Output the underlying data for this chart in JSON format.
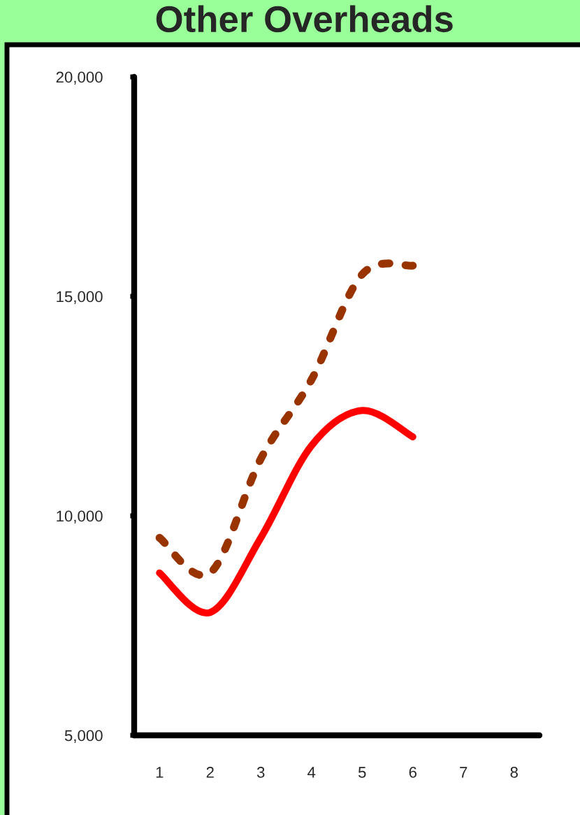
{
  "chart_data": {
    "type": "line",
    "title": "Other Overheads",
    "categories": [
      "1",
      "2",
      "3",
      "4",
      "5",
      "6",
      "7",
      "8"
    ],
    "series": [
      {
        "color": "#ff0000",
        "line_style": "solid",
        "values": [
          8700,
          7800,
          9500,
          11600,
          12400,
          11800,
          null,
          null
        ]
      },
      {
        "color": "#993300",
        "line_style": "dashed",
        "values": [
          9500,
          8700,
          11300,
          13100,
          15500,
          15700,
          null,
          null
        ]
      }
    ],
    "ylim": [
      5000,
      20000
    ],
    "yticks": [
      {
        "value": 5000,
        "label": "5,000"
      },
      {
        "value": 10000,
        "label": "10,000"
      },
      {
        "value": 15000,
        "label": "15,000"
      },
      {
        "value": 20000,
        "label": "20,000"
      }
    ],
    "grid": false
  }
}
